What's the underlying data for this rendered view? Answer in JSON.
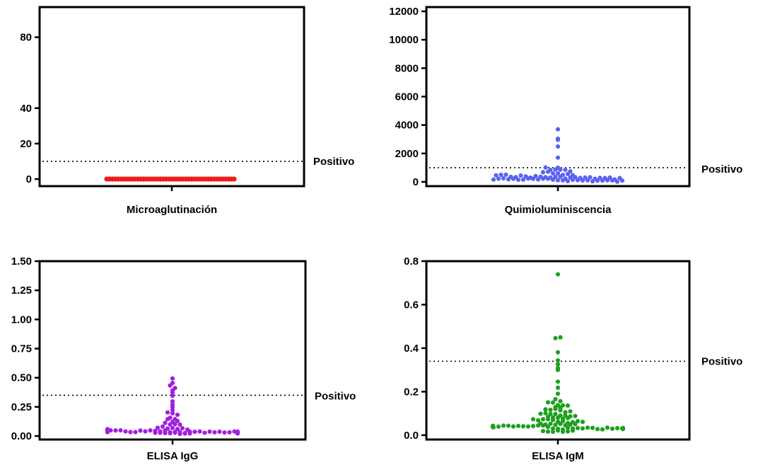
{
  "chart_data": [
    {
      "id": "micro",
      "type": "scatter",
      "xlabel": "Microaglutinación",
      "ylim": [
        -4,
        97
      ],
      "yticks": [
        0,
        20,
        40,
        80
      ],
      "threshold": 10,
      "threshold_label": "Positivo",
      "color": "#ee1c1c",
      "note_points": "All sample values are 0 (dense overlapping swarm)",
      "points": [
        0
      ]
    },
    {
      "id": "quimio",
      "type": "scatter",
      "xlabel": "Quimioluminiscencia",
      "ylim": [
        -300,
        12300
      ],
      "yticks": [
        0,
        2000,
        4000,
        6000,
        8000,
        10000,
        12000
      ],
      "threshold": 1000,
      "threshold_label": "Positivo",
      "color": "#5a64f0",
      "points": [
        3700,
        3050,
        2900,
        2450,
        1700,
        1000,
        950,
        900,
        880,
        850,
        820,
        780,
        700,
        650,
        600,
        560,
        520,
        500,
        480,
        460,
        450,
        440,
        420,
        400,
        390,
        380,
        370,
        360,
        350,
        340,
        330,
        320,
        310,
        300,
        300,
        290,
        280,
        280,
        270,
        260,
        260,
        250,
        240,
        240,
        230,
        220,
        220,
        210,
        200,
        200,
        190,
        180,
        180,
        170,
        160,
        160,
        150,
        140,
        140,
        130,
        120,
        120,
        110,
        100,
        100,
        90,
        80,
        80,
        70,
        60,
        50,
        40
      ]
    },
    {
      "id": "igg",
      "type": "scatter",
      "xlabel": "ELISA IgG",
      "ylim": [
        -0.03,
        1.5
      ],
      "yticks": [
        0.0,
        0.25,
        0.5,
        0.75,
        1.0,
        1.25,
        1.5
      ],
      "ytick_labels": [
        "0.00",
        "0.25",
        "0.50",
        "0.75",
        "1.00",
        "1.25",
        "1.50"
      ],
      "threshold": 0.35,
      "threshold_label": "Positivo",
      "color": "#a21fe0",
      "points": [
        0.49,
        0.46,
        0.44,
        0.42,
        0.4,
        0.38,
        0.35,
        0.3,
        0.27,
        0.24,
        0.22,
        0.2,
        0.19,
        0.18,
        0.16,
        0.15,
        0.14,
        0.13,
        0.12,
        0.11,
        0.1,
        0.1,
        0.09,
        0.08,
        0.08,
        0.07,
        0.07,
        0.06,
        0.06,
        0.06,
        0.05,
        0.05,
        0.05,
        0.05,
        0.05,
        0.04,
        0.04,
        0.04,
        0.04,
        0.04,
        0.04,
        0.04,
        0.04,
        0.04,
        0.04,
        0.04,
        0.04,
        0.04,
        0.04,
        0.04,
        0.04,
        0.04,
        0.04,
        0.03,
        0.03,
        0.03,
        0.03,
        0.03,
        0.03,
        0.03,
        0.03,
        0.03,
        0.03,
        0.03,
        0.03,
        0.03,
        0.03,
        0.03,
        0.03,
        0.03,
        0.03,
        0.03,
        0.03,
        0.03,
        0.03,
        0.03,
        0.03,
        0.03,
        0.02,
        0.02,
        0.02,
        0.02,
        0.02,
        0.02,
        0.02,
        0.02
      ]
    },
    {
      "id": "igm",
      "type": "scatter",
      "xlabel": "ELISA IgM",
      "ylim": [
        -0.02,
        0.8
      ],
      "yticks": [
        0.0,
        0.2,
        0.4,
        0.6,
        0.8
      ],
      "ytick_labels": [
        "0.0",
        "0.2",
        "0.4",
        "0.6",
        "0.8"
      ],
      "threshold": 0.34,
      "threshold_label": "Positivo",
      "color": "#1ea01e",
      "points": [
        0.74,
        0.45,
        0.45,
        0.38,
        0.34,
        0.33,
        0.31,
        0.3,
        0.25,
        0.22,
        0.19,
        0.17,
        0.16,
        0.15,
        0.15,
        0.14,
        0.14,
        0.14,
        0.13,
        0.13,
        0.12,
        0.12,
        0.12,
        0.11,
        0.11,
        0.11,
        0.1,
        0.1,
        0.1,
        0.1,
        0.09,
        0.09,
        0.09,
        0.09,
        0.08,
        0.08,
        0.08,
        0.08,
        0.08,
        0.07,
        0.07,
        0.07,
        0.07,
        0.07,
        0.06,
        0.06,
        0.06,
        0.06,
        0.06,
        0.06,
        0.05,
        0.05,
        0.05,
        0.05,
        0.05,
        0.05,
        0.05,
        0.05,
        0.04,
        0.04,
        0.04,
        0.04,
        0.04,
        0.04,
        0.04,
        0.04,
        0.04,
        0.04,
        0.04,
        0.04,
        0.04,
        0.04,
        0.04,
        0.04,
        0.03,
        0.03,
        0.03,
        0.03,
        0.03,
        0.03,
        0.03,
        0.03,
        0.03,
        0.03,
        0.03,
        0.03,
        0.03,
        0.03,
        0.03,
        0.03,
        0.03,
        0.03,
        0.03,
        0.02,
        0.02,
        0.02,
        0.02,
        0.02,
        0.02,
        0.02
      ]
    }
  ]
}
